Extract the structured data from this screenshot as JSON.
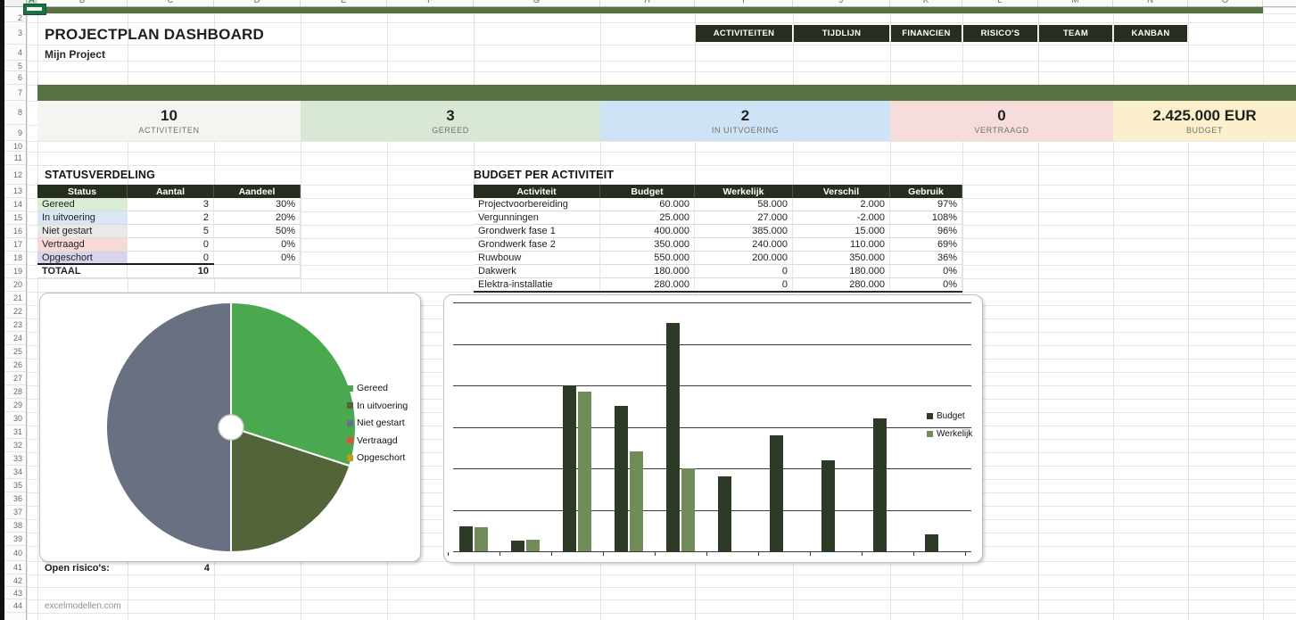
{
  "sheet": {
    "columns": [
      "A",
      "B",
      "C",
      "D",
      "E",
      "F",
      "G",
      "H",
      "I",
      "J",
      "K",
      "L",
      "M",
      "N",
      "O"
    ],
    "rows": [
      2,
      3,
      4,
      5,
      6,
      7,
      8,
      9,
      10,
      11,
      12,
      13,
      14,
      15,
      16,
      17,
      18,
      19,
      20,
      21,
      22,
      23,
      24,
      25,
      26,
      27,
      28,
      29,
      30,
      31,
      32,
      33,
      34,
      35,
      36,
      37,
      38,
      39,
      40,
      41,
      42,
      43,
      44
    ]
  },
  "header": {
    "title": "PROJECTPLAN DASHBOARD",
    "subtitle": "Mijn Project"
  },
  "nav": {
    "buttons": [
      "ACTIVITEITEN",
      "TIJDLIJN",
      "FINANCIEN",
      "RISICO'S",
      "TEAM",
      "KANBAN"
    ]
  },
  "kpis": [
    {
      "value": "10",
      "label": "ACTIVITEITEN",
      "bg": "#f4f4f0"
    },
    {
      "value": "3",
      "label": "GEREED",
      "bg": "#d9e8d4"
    },
    {
      "value": "2",
      "label": "IN UITVOERING",
      "bg": "#cee4f6"
    },
    {
      "value": "0",
      "label": "VERTRAAGD",
      "bg": "#f6dcdb"
    },
    {
      "value": "2.425.000 EUR",
      "label": "BUDGET",
      "bg": "#fbf0cb"
    }
  ],
  "status_table": {
    "title": "STATUSVERDELING",
    "headers": [
      "Status",
      "Aantal",
      "Aandeel"
    ],
    "rows": [
      {
        "status": "Gereed",
        "aantal": "3",
        "aandeel": "30%",
        "color": "#d9ecd5"
      },
      {
        "status": "In uitvoering",
        "aantal": "2",
        "aandeel": "20%",
        "color": "#d8e6f6"
      },
      {
        "status": "Niet gestart",
        "aantal": "5",
        "aandeel": "50%",
        "color": "#e9e9e9"
      },
      {
        "status": "Vertraagd",
        "aantal": "0",
        "aandeel": "0%",
        "color": "#f8d9d7"
      },
      {
        "status": "Opgeschort",
        "aantal": "0",
        "aandeel": "0%",
        "color": "#dad3ec"
      }
    ],
    "total_label": "TOTAAL",
    "total_value": "10"
  },
  "budget_table": {
    "title": "BUDGET PER ACTIVITEIT",
    "headers": [
      "Activiteit",
      "Budget",
      "Werkelijk",
      "Verschil",
      "Gebruik"
    ],
    "rows": [
      [
        "Projectvoorbereiding",
        "60.000",
        "58.000",
        "2.000",
        "97%"
      ],
      [
        "Vergunningen",
        "25.000",
        "27.000",
        "-2.000",
        "108%"
      ],
      [
        "Grondwerk fase 1",
        "400.000",
        "385.000",
        "15.000",
        "96%"
      ],
      [
        "Grondwerk fase 2",
        "350.000",
        "240.000",
        "110.000",
        "69%"
      ],
      [
        "Ruwbouw",
        "550.000",
        "200.000",
        "350.000",
        "36%"
      ],
      [
        "Dakwerk",
        "180.000",
        "0",
        "180.000",
        "0%"
      ],
      [
        "Elektra-installatie",
        "280.000",
        "0",
        "280.000",
        "0%"
      ]
    ]
  },
  "chart_data": [
    {
      "type": "pie",
      "title": "",
      "labels": [
        "Gereed",
        "In uitvoering",
        "Niet gestart",
        "Vertraagd",
        "Opgeschort"
      ],
      "values": [
        3,
        2,
        5,
        0,
        0
      ],
      "percentages": [
        30,
        20,
        50,
        0,
        0
      ],
      "colors": [
        "#4aa84e",
        "#536439",
        "#687081",
        "#e0523f",
        "#c79b16"
      ],
      "legend_position": "right",
      "donut_hole_ratio": 0.1
    },
    {
      "type": "bar",
      "title": "",
      "categories": [
        "",
        "",
        "",
        "",
        "",
        "",
        "",
        "",
        "",
        ""
      ],
      "series": [
        {
          "name": "Budget",
          "values": [
            60000,
            25000,
            400000,
            350000,
            550000,
            180000,
            280000,
            220000,
            320000,
            40000
          ]
        },
        {
          "name": "Werkelijk",
          "values": [
            58000,
            27000,
            385000,
            240000,
            200000,
            0,
            0,
            0,
            0,
            0
          ]
        }
      ],
      "colors": [
        "#2d3a26",
        "#708d59"
      ],
      "ylim": [
        0,
        600000
      ],
      "gridline_step": 100000,
      "grid": true,
      "axis_tick_labels_shown": false,
      "legend_position": "right"
    }
  ],
  "footer": {
    "open_risks_label": "Open risico's:",
    "open_risks_value": "4",
    "credit": "excelmodellen.com"
  },
  "colors": {
    "accent_dark": "#262f1f",
    "accent_green": "#567240",
    "selection_green": "#1d7044",
    "grid_line": "#e2e2e2",
    "chart_border": "#bfbfbf"
  }
}
